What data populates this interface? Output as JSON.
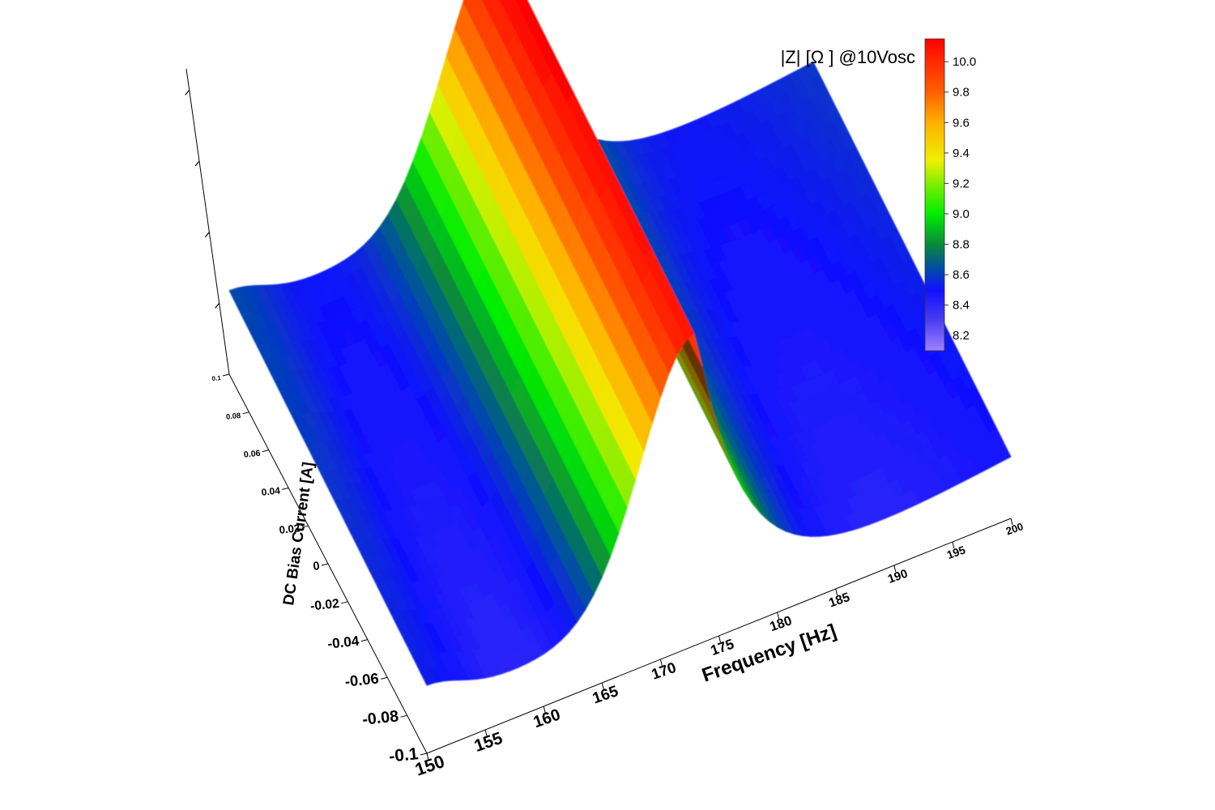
{
  "chart_data": {
    "type": "surface",
    "colorbar": {
      "title": "|Z| [Ω ] @10Vosc",
      "range": [
        8.1,
        10.15
      ],
      "ticks": [
        "8.2",
        "8.4",
        "8.6",
        "8.8",
        "9.0",
        "9.2",
        "9.4",
        "9.6",
        "9.8",
        "10.0"
      ],
      "stops": [
        {
          "v": 8.1,
          "color": "#a080ff"
        },
        {
          "v": 8.3,
          "color": "#4a3df0"
        },
        {
          "v": 8.5,
          "color": "#1010ff"
        },
        {
          "v": 8.65,
          "color": "#0050a0"
        },
        {
          "v": 8.8,
          "color": "#0a8a3a"
        },
        {
          "v": 9.0,
          "color": "#00ee00"
        },
        {
          "v": 9.2,
          "color": "#80ee00"
        },
        {
          "v": 9.35,
          "color": "#f0f000"
        },
        {
          "v": 9.6,
          "color": "#ffb000"
        },
        {
          "v": 9.8,
          "color": "#ff6000"
        },
        {
          "v": 10.15,
          "color": "#ff0000"
        }
      ]
    },
    "x_axis": {
      "label": "Frequency [Hz]",
      "range": [
        150,
        200
      ],
      "ticks": [
        "150",
        "155",
        "160",
        "165",
        "170",
        "175",
        "180",
        "185",
        "190",
        "195",
        "200"
      ]
    },
    "y_axis": {
      "label": "DC Bias Current [A]",
      "range": [
        -0.1,
        0.1
      ],
      "ticks": [
        "-0.1",
        "-0.08",
        "-0.06",
        "-0.04",
        "-0.02",
        "0",
        "0.02",
        "0.04",
        "0.06",
        "0.08",
        "0.1"
      ]
    },
    "z_axis": {
      "label": "",
      "range": [
        8.1,
        10.15
      ],
      "visible_ticks": false
    },
    "surface": {
      "resonance_hz": 173,
      "peak_impedance_ohm": 10.1,
      "values_at_zero_bias": [
        {
          "f": 150,
          "z": 8.6
        },
        {
          "f": 160,
          "z": 8.45
        },
        {
          "f": 165,
          "z": 8.7
        },
        {
          "f": 170,
          "z": 9.4
        },
        {
          "f": 173,
          "z": 10.1
        },
        {
          "f": 180,
          "z": 8.45
        },
        {
          "f": 190,
          "z": 8.35
        },
        {
          "f": 200,
          "z": 8.6
        }
      ]
    },
    "grid": false
  }
}
